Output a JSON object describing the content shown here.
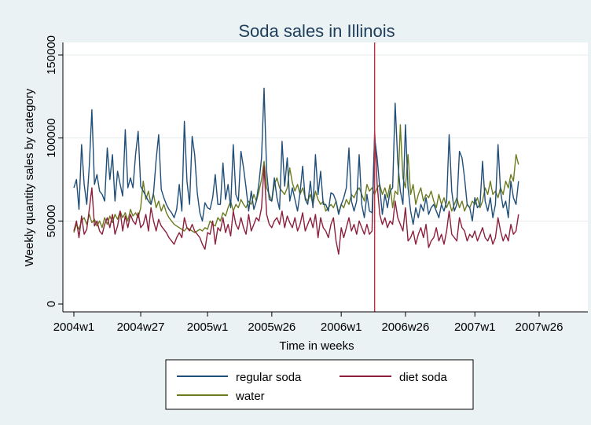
{
  "chart_data": {
    "type": "line",
    "title": "Soda sales in Illinois",
    "xlabel": "Time in weeks",
    "ylabel": "Weekly quantity sales by category",
    "xlim": [
      0,
      182
    ],
    "ylim": [
      0,
      150000
    ],
    "x_ticks": [
      {
        "label": "2004w1",
        "week": 0
      },
      {
        "label": "2004w27",
        "week": 26
      },
      {
        "label": "2005w1",
        "week": 52
      },
      {
        "label": "2005w26",
        "week": 77
      },
      {
        "label": "2006w1",
        "week": 104
      },
      {
        "label": "2006w26",
        "week": 129
      },
      {
        "label": "2007w1",
        "week": 156
      },
      {
        "label": "2007w26",
        "week": 181
      }
    ],
    "y_ticks": [
      0,
      50000,
      100000,
      150000
    ],
    "y_tick_labels": [
      "0",
      "50000",
      "100000",
      "150000"
    ],
    "vline": {
      "week": 117,
      "color": "#c0303e"
    },
    "grid": true,
    "legend_position": "bottom",
    "colors": {
      "regular_soda": "#1f4e79",
      "diet_soda": "#8c1f3c",
      "water": "#6b7b1f",
      "plot_bg": "#ffffff",
      "outer_bg": "#eaf2f3"
    },
    "series": [
      {
        "name": "regular soda",
        "key": "regular_soda",
        "x_start": 0,
        "values": [
          70000,
          75000,
          57000,
          96000,
          72000,
          60000,
          83000,
          117000,
          72000,
          78000,
          68000,
          66000,
          62000,
          94000,
          75000,
          90000,
          62000,
          80000,
          72000,
          65000,
          105000,
          70000,
          76000,
          70000,
          90000,
          104000,
          71000,
          68000,
          65000,
          62000,
          60000,
          67000,
          87000,
          102000,
          69000,
          64000,
          60000,
          57000,
          55000,
          52000,
          57000,
          72000,
          56000,
          110000,
          74000,
          60000,
          101000,
          90000,
          67000,
          55000,
          50000,
          61000,
          58000,
          57000,
          64000,
          78000,
          60000,
          60000,
          85000,
          63000,
          72000,
          58000,
          96000,
          66000,
          62000,
          92000,
          82000,
          70000,
          56000,
          68000,
          57000,
          62000,
          73000,
          88000,
          130000,
          80000,
          63000,
          62000,
          76000,
          64000,
          57000,
          98000,
          71000,
          88000,
          62000,
          70000,
          63000,
          56000,
          67000,
          83000,
          63000,
          60000,
          74000,
          58000,
          90000,
          66000,
          80000,
          60000,
          60000,
          56000,
          67000,
          66000,
          62000,
          54000,
          60000,
          64000,
          70000,
          94000,
          62000,
          56000,
          62000,
          90000,
          60000,
          52000,
          66000,
          56000,
          55000,
          100000,
          88000,
          70000,
          54000,
          66000,
          58000,
          68000,
          70000,
          121000,
          86000,
          68000,
          60000,
          108000,
          70000,
          56000,
          48000,
          58000,
          52000,
          60000,
          56000,
          64000,
          54000,
          58000,
          60000,
          56000,
          52000,
          60000,
          56000,
          62000,
          102000,
          68000,
          56000,
          60000,
          92000,
          88000,
          76000,
          60000,
          58000,
          50000,
          64000,
          58000,
          60000,
          86000,
          62000,
          56000,
          64000,
          52000,
          60000,
          96000,
          68000,
          58000,
          62000,
          52000,
          74000,
          64000,
          60000,
          74000
        ]
      },
      {
        "name": "diet soda",
        "key": "diet_soda",
        "x_start": 0,
        "values": [
          44000,
          50000,
          40000,
          53000,
          42000,
          45000,
          57000,
          70000,
          47000,
          50000,
          44000,
          42000,
          48000,
          52000,
          46000,
          54000,
          42000,
          47000,
          56000,
          44000,
          53000,
          46000,
          54000,
          50000,
          48000,
          55000,
          46000,
          48000,
          54000,
          44000,
          58000,
          50000,
          44000,
          51000,
          47000,
          45000,
          43000,
          40000,
          38000,
          36000,
          40000,
          43000,
          40000,
          52000,
          46000,
          44000,
          48000,
          44000,
          42000,
          40000,
          36000,
          33000,
          43000,
          42000,
          50000,
          36000,
          46000,
          44000,
          52000,
          43000,
          48000,
          41000,
          56000,
          48000,
          45000,
          52000,
          46000,
          42000,
          54000,
          44000,
          48000,
          52000,
          50000,
          58000,
          83000,
          54000,
          48000,
          46000,
          50000,
          52000,
          48000,
          56000,
          46000,
          53000,
          49000,
          46000,
          52000,
          44000,
          48000,
          55000,
          44000,
          48000,
          52000,
          46000,
          54000,
          40000,
          52000,
          46000,
          44000,
          40000,
          48000,
          52000,
          38000,
          30000,
          46000,
          40000,
          46000,
          52000,
          44000,
          48000,
          42000,
          50000,
          46000,
          42000,
          48000,
          42000,
          44000,
          104000,
          72000,
          54000,
          48000,
          52000,
          46000,
          50000,
          48000,
          62000,
          52000,
          48000,
          44000,
          58000,
          38000,
          40000,
          44000,
          36000,
          42000,
          46000,
          40000,
          48000,
          34000,
          38000,
          40000,
          46000,
          38000,
          42000,
          36000,
          44000,
          56000,
          42000,
          40000,
          38000,
          52000,
          46000,
          44000,
          38000,
          42000,
          40000,
          44000,
          38000,
          42000,
          46000,
          40000,
          38000,
          42000,
          36000,
          40000,
          52000,
          44000,
          38000,
          42000,
          38000,
          48000,
          42000,
          44000,
          54000
        ]
      },
      {
        "name": "water",
        "key": "water",
        "x_start": 0,
        "values": [
          43000,
          48000,
          45000,
          50000,
          52000,
          48000,
          54000,
          49000,
          51000,
          47000,
          50000,
          46000,
          52000,
          48000,
          53000,
          49000,
          54000,
          51000,
          56000,
          52000,
          55000,
          50000,
          57000,
          53000,
          55000,
          52000,
          58000,
          74000,
          63000,
          68000,
          60000,
          66000,
          58000,
          62000,
          56000,
          60000,
          55000,
          52000,
          50000,
          48000,
          47000,
          46000,
          45000,
          44000,
          46000,
          45000,
          44000,
          43000,
          44000,
          45000,
          44000,
          46000,
          45000,
          50000,
          48000,
          47000,
          52000,
          50000,
          55000,
          53000,
          58000,
          62000,
          56000,
          60000,
          58000,
          63000,
          60000,
          58000,
          62000,
          60000,
          66000,
          62000,
          68000,
          75000,
          86000,
          70000,
          66000,
          62000,
          72000,
          76000,
          70000,
          68000,
          66000,
          70000,
          82000,
          73000,
          68000,
          72000,
          66000,
          70000,
          64000,
          62000,
          66000,
          60000,
          68000,
          63000,
          60000,
          62000,
          56000,
          58000,
          60000,
          58000,
          62000,
          55000,
          60000,
          58000,
          63000,
          60000,
          66000,
          64000,
          68000,
          70000,
          66000,
          62000,
          72000,
          68000,
          70000,
          66000,
          70000,
          72000,
          66000,
          70000,
          64000,
          72000,
          58000,
          68000,
          66000,
          108000,
          76000,
          70000,
          90000,
          66000,
          72000,
          60000,
          66000,
          70000,
          62000,
          66000,
          64000,
          68000,
          62000,
          58000,
          66000,
          60000,
          64000,
          58000,
          62000,
          56000,
          60000,
          64000,
          58000,
          62000,
          56000,
          60000,
          58000,
          62000,
          60000,
          64000,
          58000,
          62000,
          70000,
          66000,
          74000,
          66000,
          68000,
          64000,
          70000,
          66000,
          74000,
          70000,
          78000,
          74000,
          90000,
          84000
        ]
      }
    ]
  }
}
